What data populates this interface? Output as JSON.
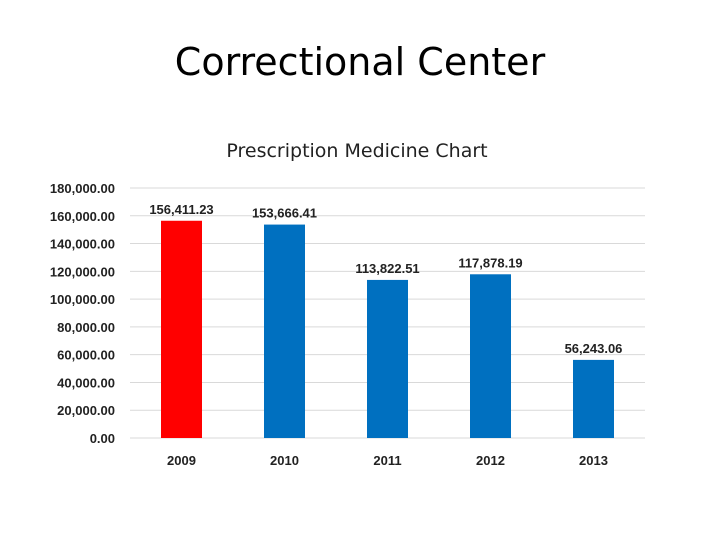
{
  "slide": {
    "title": "Correctional Center"
  },
  "chart_data": {
    "type": "bar",
    "title": "Prescription Medicine Chart",
    "categories": [
      "2009",
      "2010",
      "2011",
      "2012",
      "2013"
    ],
    "values": [
      156411.23,
      153666.41,
      113822.51,
      117878.19,
      56243.06
    ],
    "data_labels": [
      "156,411.23",
      "153,666.41",
      "113,822.51",
      "117,878.19",
      "56,243.06"
    ],
    "yticks": [
      "0.00",
      "20,000.00",
      "40,000.00",
      "60,000.00",
      "80,000.00",
      "100,000.00",
      "120,000.00",
      "140,000.00",
      "160,000.00",
      "180,000.00"
    ],
    "ylim": [
      0,
      180000
    ],
    "xlabel": "",
    "ylabel": "",
    "grid": true,
    "legend": "none",
    "colors": {
      "highlight": "#ff0000",
      "default": "#0070c0"
    },
    "highlight_index": 0
  }
}
